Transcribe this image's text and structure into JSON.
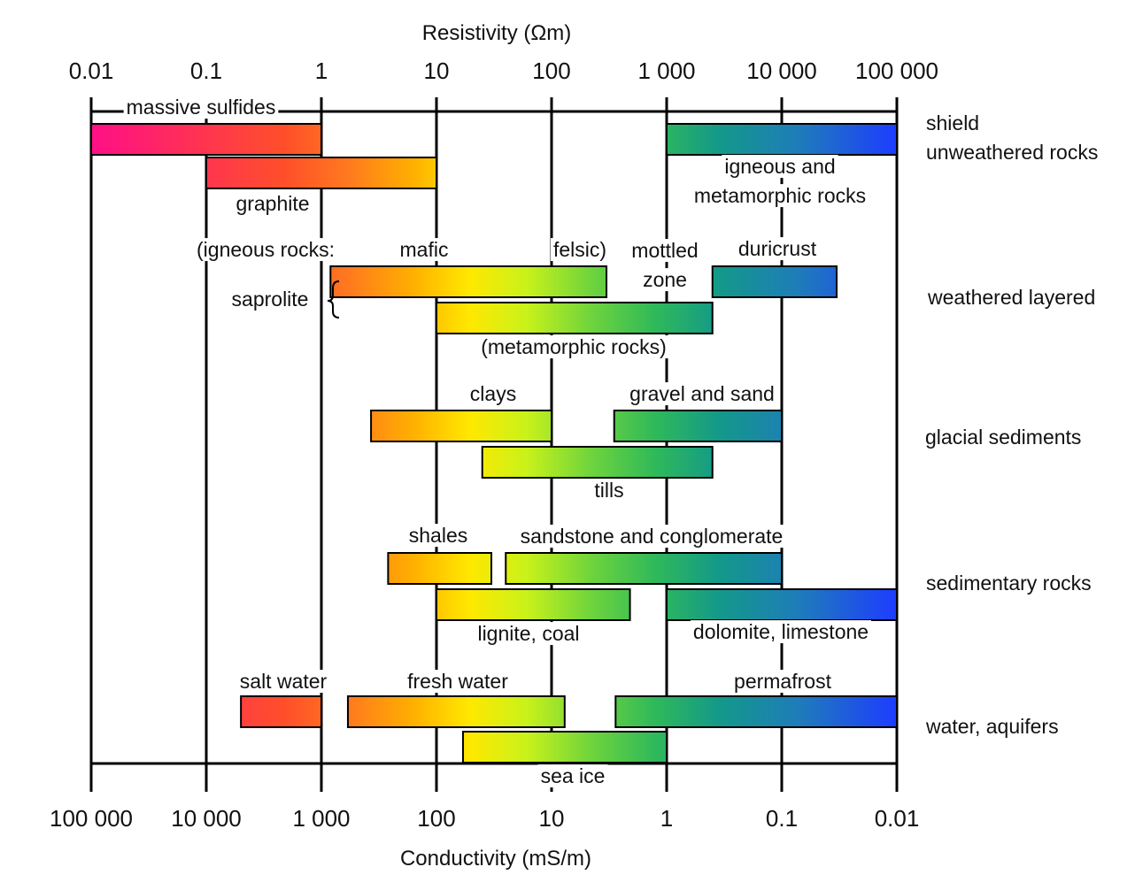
{
  "chart_data": {
    "type": "range-bar",
    "top_axis": {
      "title": "Resistivity (Ωm)",
      "scale": "log",
      "ticks": [
        0.01,
        0.1,
        1,
        10,
        100,
        1000,
        10000,
        100000
      ],
      "tick_labels": [
        "0.01",
        "0.1",
        "1",
        "10",
        "100",
        "1 000",
        "10 000",
        "100 000"
      ]
    },
    "bottom_axis": {
      "title": "Conductivity (mS/m)",
      "scale": "log",
      "tick_labels": [
        "100 000",
        "10 000",
        "1 000",
        "100",
        "10",
        "1",
        "0.1",
        "0.01"
      ]
    },
    "grid": true,
    "categories": [
      {
        "key": "shield",
        "label_lines": [
          "shield",
          "unweathered rocks"
        ]
      },
      {
        "key": "weathered",
        "label_lines": [
          "weathered layered"
        ]
      },
      {
        "key": "glacial",
        "label_lines": [
          "glacial sediments"
        ]
      },
      {
        "key": "sedimentary",
        "label_lines": [
          "sedimentary rocks"
        ]
      },
      {
        "key": "water",
        "label_lines": [
          "water, aquifers"
        ]
      }
    ],
    "bars": [
      {
        "label": "massive sulfides",
        "group": "shield",
        "resistivity_min": 0.01,
        "resistivity_max": 1
      },
      {
        "label": "graphite",
        "group": "shield",
        "resistivity_min": 0.1,
        "resistivity_max": 10
      },
      {
        "label": "igneous and metamorphic rocks",
        "group": "shield",
        "resistivity_min": 1000,
        "resistivity_max": 100000
      },
      {
        "label": "saprolite (igneous rocks: mafic – felsic)",
        "group": "weathered",
        "resistivity_min": 1.2,
        "resistivity_max": 300
      },
      {
        "label": "saprolite (metamorphic rocks)",
        "group": "weathered",
        "resistivity_min": 10,
        "resistivity_max": 2500
      },
      {
        "label": "mottled zone / duricrust",
        "group": "weathered",
        "resistivity_min": 2500,
        "resistivity_max": 30000
      },
      {
        "label": "clays",
        "group": "glacial",
        "resistivity_min": 2.7,
        "resistivity_max": 100
      },
      {
        "label": "gravel and sand",
        "group": "glacial",
        "resistivity_min": 350,
        "resistivity_max": 10000
      },
      {
        "label": "tills",
        "group": "glacial",
        "resistivity_min": 25,
        "resistivity_max": 2500
      },
      {
        "label": "shales",
        "group": "sedimentary",
        "resistivity_min": 3.8,
        "resistivity_max": 30
      },
      {
        "label": "sandstone and conglomerate",
        "group": "sedimentary",
        "resistivity_min": 40,
        "resistivity_max": 10000
      },
      {
        "label": "lignite, coal",
        "group": "sedimentary",
        "resistivity_min": 10,
        "resistivity_max": 480
      },
      {
        "label": "dolomite, limestone",
        "group": "sedimentary",
        "resistivity_min": 1000,
        "resistivity_max": 100000
      },
      {
        "label": "salt water",
        "group": "water",
        "resistivity_min": 0.2,
        "resistivity_max": 1
      },
      {
        "label": "fresh water",
        "group": "water",
        "resistivity_min": 1.7,
        "resistivity_max": 130
      },
      {
        "label": "permafrost",
        "group": "water",
        "resistivity_min": 360,
        "resistivity_max": 100000
      },
      {
        "label": "sea ice",
        "group": "water",
        "resistivity_min": 17,
        "resistivity_max": 1000
      }
    ],
    "annotations": [
      "massive sulfides",
      "graphite",
      "igneous and",
      "metamorphic rocks",
      "(igneous rocks:",
      "mafic",
      "felsic)",
      "mottled",
      "zone",
      "duricrust",
      "saprolite",
      "(metamorphic rocks)",
      "clays",
      "gravel and sand",
      "tills",
      "shales",
      "sandstone and conglomerate",
      "lignite, coal",
      "dolomite, limestone",
      "salt water",
      "fresh water",
      "permafrost",
      "sea ice"
    ]
  }
}
